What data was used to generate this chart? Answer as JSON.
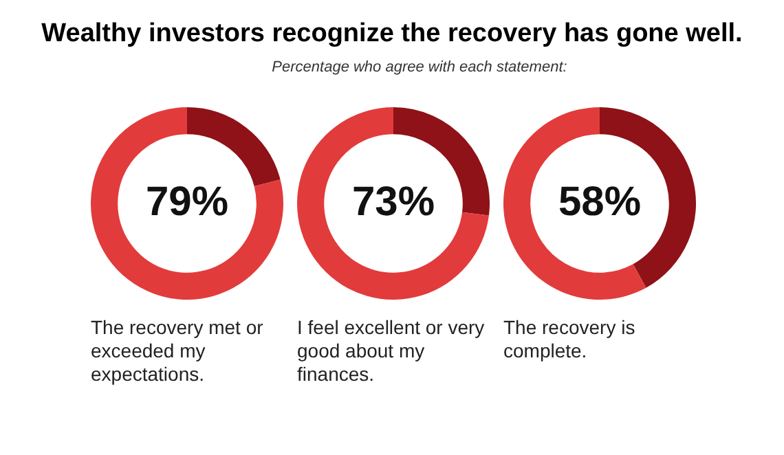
{
  "chart_data": [
    {
      "type": "donut",
      "title": "Wealthy investors recognize the recovery has gone well.",
      "categories": [
        null,
        null
      ],
      "values": [
        21,
        79
      ],
      "colors": [
        "#8e1217",
        "#e23b3b"
      ],
      "value_labels": [
        null,
        "79%"
      ],
      "annotations": [
        "The recovery met or exceeded my expectations."
      ]
    },
    {
      "type": "donut",
      "subtitle": "Percentage who agree with each statement:",
      "categories": [
        null,
        null
      ],
      "values": [
        27,
        73
      ],
      "colors": [
        "#8e1217",
        "#e23b3b"
      ],
      "value_labels": [
        null,
        "73%"
      ],
      "annotations": [
        "I feel excellent or very good about my finances."
      ]
    },
    {
      "type": "donut",
      "categories": [
        null,
        null
      ],
      "values": [
        42,
        58
      ],
      "colors": [
        "#8e1217",
        "#e23b3b"
      ],
      "value_labels": [
        null,
        "58%"
      ],
      "annotations": [
        "The recovery is complete."
      ]
    }
  ]
}
